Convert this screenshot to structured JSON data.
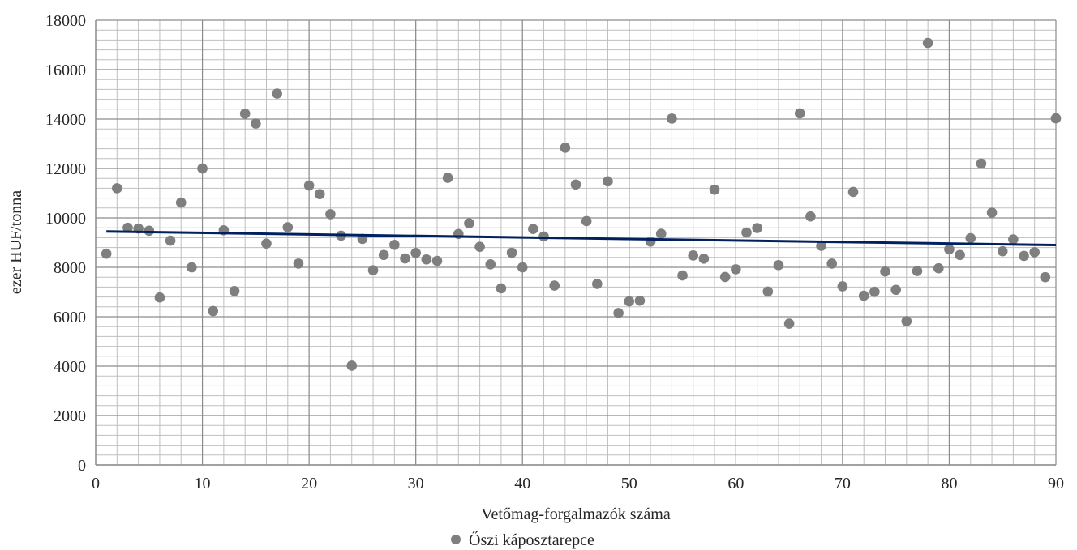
{
  "chart_data": {
    "type": "scatter",
    "title": "",
    "xlabel": "Vetőmag-forgalmazók száma",
    "ylabel": "ezer HUF/tonna",
    "xlim": [
      0,
      90
    ],
    "ylim": [
      0,
      18000
    ],
    "xticks": [
      0,
      10,
      20,
      30,
      40,
      50,
      60,
      70,
      80,
      90
    ],
    "yticks": [
      0,
      2000,
      4000,
      6000,
      8000,
      10000,
      12000,
      14000,
      16000,
      18000
    ],
    "grid": true,
    "legend_position": "bottom",
    "series": [
      {
        "name": "Őszi káposztarepce",
        "color": "#7f7f7f",
        "marker": "circle",
        "points": [
          [
            1,
            8550
          ],
          [
            2,
            11200
          ],
          [
            3,
            9600
          ],
          [
            4,
            9570
          ],
          [
            5,
            9480
          ],
          [
            6,
            6780
          ],
          [
            7,
            9080
          ],
          [
            8,
            10620
          ],
          [
            9,
            8000
          ],
          [
            10,
            12000
          ],
          [
            11,
            6230
          ],
          [
            12,
            9500
          ],
          [
            13,
            7040
          ],
          [
            14,
            14220
          ],
          [
            15,
            13820
          ],
          [
            16,
            8960
          ],
          [
            17,
            15030
          ],
          [
            18,
            9620
          ],
          [
            19,
            8150
          ],
          [
            20,
            11310
          ],
          [
            21,
            10960
          ],
          [
            22,
            10150
          ],
          [
            23,
            9280
          ],
          [
            24,
            4020
          ],
          [
            25,
            9150
          ],
          [
            26,
            7880
          ],
          [
            27,
            8500
          ],
          [
            28,
            8910
          ],
          [
            29,
            8360
          ],
          [
            30,
            8580
          ],
          [
            31,
            8320
          ],
          [
            32,
            8260
          ],
          [
            33,
            11620
          ],
          [
            34,
            9350
          ],
          [
            35,
            9780
          ],
          [
            36,
            8830
          ],
          [
            37,
            8120
          ],
          [
            38,
            7150
          ],
          [
            39,
            8590
          ],
          [
            40,
            8000
          ],
          [
            41,
            9550
          ],
          [
            42,
            9250
          ],
          [
            43,
            7260
          ],
          [
            44,
            12840
          ],
          [
            45,
            11350
          ],
          [
            46,
            9870
          ],
          [
            47,
            7330
          ],
          [
            48,
            11480
          ],
          [
            49,
            6150
          ],
          [
            50,
            6620
          ],
          [
            51,
            6650
          ],
          [
            52,
            9040
          ],
          [
            53,
            9360
          ],
          [
            54,
            14020
          ],
          [
            55,
            7670
          ],
          [
            56,
            8480
          ],
          [
            57,
            8350
          ],
          [
            58,
            11140
          ],
          [
            59,
            7610
          ],
          [
            60,
            7920
          ],
          [
            61,
            9410
          ],
          [
            62,
            9590
          ],
          [
            63,
            7020
          ],
          [
            64,
            8090
          ],
          [
            65,
            5720
          ],
          [
            66,
            14230
          ],
          [
            67,
            10060
          ],
          [
            68,
            8870
          ],
          [
            69,
            8150
          ],
          [
            70,
            7230
          ],
          [
            71,
            11050
          ],
          [
            72,
            6850
          ],
          [
            73,
            7010
          ],
          [
            74,
            7830
          ],
          [
            75,
            7090
          ],
          [
            76,
            5820
          ],
          [
            77,
            7850
          ],
          [
            78,
            17080
          ],
          [
            79,
            7960
          ],
          [
            80,
            8730
          ],
          [
            81,
            8500
          ],
          [
            82,
            9180
          ],
          [
            83,
            12200
          ],
          [
            84,
            10210
          ],
          [
            85,
            8650
          ],
          [
            86,
            9130
          ],
          [
            87,
            8460
          ],
          [
            88,
            8610
          ],
          [
            89,
            7600
          ],
          [
            90,
            14030
          ]
        ]
      }
    ],
    "trendline": {
      "type": "linear",
      "color": "#002060",
      "x": [
        1,
        90
      ],
      "y": [
        9450,
        8900
      ]
    }
  }
}
